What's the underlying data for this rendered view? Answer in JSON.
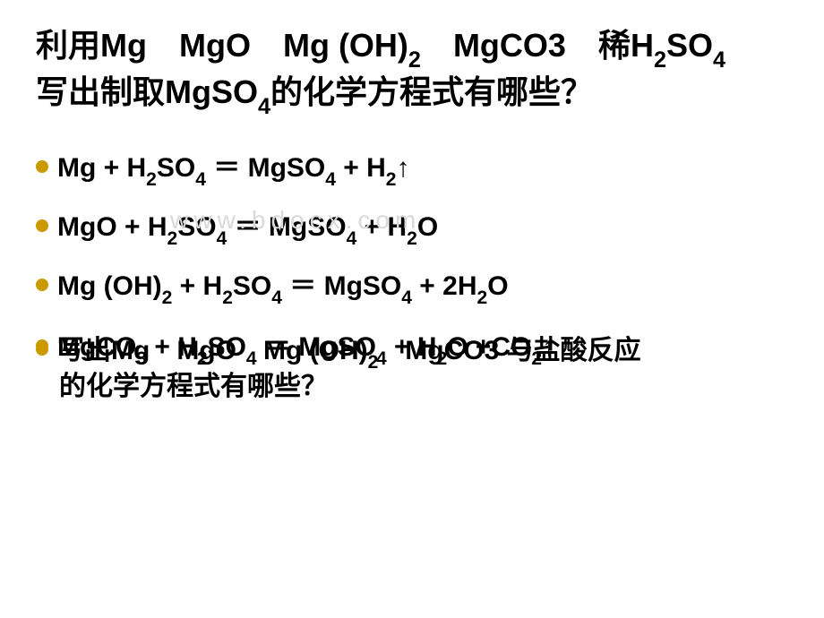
{
  "title": {
    "fontsize": 36,
    "color": "#000000",
    "parts": [
      {
        "t": "利用Mg　MgO　Mg (OH)"
      },
      {
        "t": "2",
        "sub": true
      },
      {
        "t": "　MgCO3　稀H"
      },
      {
        "t": "2",
        "sub": true
      },
      {
        "t": "SO"
      },
      {
        "t": "4",
        "sub": true
      },
      {
        "t": "　写出制取MgSO"
      },
      {
        "t": "4",
        "sub": true
      },
      {
        "t": "的化学方程式有哪些？"
      }
    ]
  },
  "bullet_color": "#cc9900",
  "equation_fontsize": 30,
  "equations": [
    {
      "parts": [
        {
          "t": " Mg + H"
        },
        {
          "t": "2",
          "sub": true
        },
        {
          "t": "SO"
        },
        {
          "t": "4",
          "sub": true
        },
        {
          "t": " ＝ MgSO"
        },
        {
          "t": "4",
          "sub": true
        },
        {
          "t": " + H"
        },
        {
          "t": "2",
          "sub": true
        },
        {
          "t": "↑"
        }
      ]
    },
    {
      "parts": [
        {
          "t": "MgO + H"
        },
        {
          "t": "2",
          "sub": true,
          "wm": true
        },
        {
          "t": "SO",
          "wm": true
        },
        {
          "t": "4",
          "sub": true,
          "wm": true
        },
        {
          "t": " ＝ MgSO",
          "wm": true
        },
        {
          "t": "4",
          "sub": true,
          "wm": true
        },
        {
          "t": " + H",
          "wm": true
        },
        {
          "t": "2",
          "sub": true
        },
        {
          "t": "O"
        }
      ],
      "watermark_overlay": "www.bdocx.com"
    },
    {
      "parts": [
        {
          "t": "Mg (OH)"
        },
        {
          "t": "2",
          "sub": true
        },
        {
          "t": " + H"
        },
        {
          "t": "2",
          "sub": true
        },
        {
          "t": "SO"
        },
        {
          "t": "4",
          "sub": true
        },
        {
          "t": " ＝ MgSO"
        },
        {
          "t": "4",
          "sub": true
        },
        {
          "t": " + 2H"
        },
        {
          "t": "2",
          "sub": true
        },
        {
          "t": "O"
        }
      ]
    }
  ],
  "overlap": {
    "fontsize": 30,
    "line_a": [
      {
        "t": "MgCO"
      },
      {
        "t": "3",
        "sub": true
      },
      {
        "t": " + H"
      },
      {
        "t": "2",
        "sub": true
      },
      {
        "t": "SO"
      },
      {
        "t": "4",
        "sub": true
      },
      {
        "t": " ＝ MgSO"
      },
      {
        "t": "4",
        "sub": true
      },
      {
        "t": " + H"
      },
      {
        "t": "2",
        "sub": true
      },
      {
        "t": "O +CO"
      },
      {
        "t": "2",
        "sub": true
      },
      {
        "t": "↑"
      }
    ],
    "line_b": [
      {
        "t": "写出Mg　MgO　Mg (OH)"
      },
      {
        "t": "2",
        "sub": true
      },
      {
        "t": "　MgCO3 与盐酸反应"
      }
    ],
    "line_c": "的化学方程式有哪些？"
  }
}
